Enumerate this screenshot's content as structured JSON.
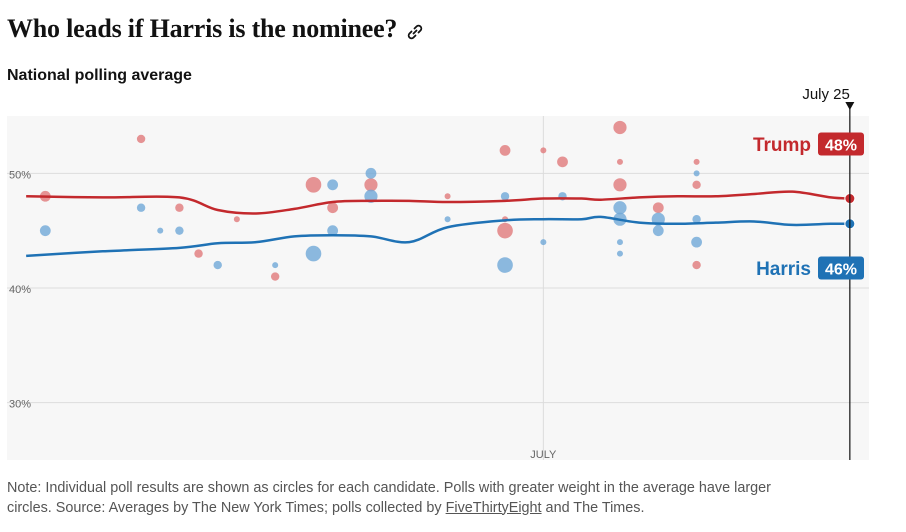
{
  "title": "Who leads if Harris is the nominee?",
  "link_icon": "link-icon",
  "subtitle": "National polling average",
  "note": {
    "text_before": "Note: Individual poll results are shown as circles for each candidate. Polls with greater weight in the average have larger circles. Source: Averages by The New York Times; polls collected by ",
    "link_text": "FiveThirtyEight",
    "text_after": " and The Times."
  },
  "colors": {
    "trump": "#c3292d",
    "harris": "#1f72b5",
    "trump_dot": "#e0797b",
    "harris_dot": "#6fa8d7",
    "overlap_dot": "#4e5b7e",
    "plot_bg": "#f7f7f7",
    "grid": "#dcdcdc"
  },
  "chart_data": {
    "type": "line",
    "title": "National polling average",
    "xlabel": "",
    "ylabel": "",
    "x_range": [
      -28,
      17
    ],
    "ylim": [
      25,
      55
    ],
    "x_ticks": [
      {
        "x": 0,
        "label": "JULY"
      }
    ],
    "y_ticks": [
      {
        "y": 30,
        "label": "30%"
      },
      {
        "y": 40,
        "label": "40%"
      },
      {
        "y": 50,
        "label": "50%"
      }
    ],
    "marker": {
      "x": 16,
      "label": "July 25"
    },
    "series": [
      {
        "name": "Trump",
        "key": "trump",
        "end_label": "48%",
        "x": [
          -27,
          -23,
          -19,
          -17,
          -15,
          -13,
          -11,
          -9,
          -7,
          -5,
          -2,
          0,
          2,
          3,
          5,
          7,
          9,
          11,
          13,
          15,
          16
        ],
        "values": [
          48,
          47.9,
          47.9,
          46.8,
          46.5,
          46.9,
          47.5,
          47.6,
          47.6,
          47.5,
          47.6,
          47.8,
          47.8,
          47.7,
          47.9,
          48.0,
          48.0,
          48.2,
          48.4,
          47.9,
          47.8
        ],
        "polls": [
          {
            "x": -26,
            "y": 48,
            "w": 2
          },
          {
            "x": -21,
            "y": 53,
            "w": 1.5
          },
          {
            "x": -19,
            "y": 47,
            "w": 1.5
          },
          {
            "x": -18,
            "y": 43,
            "w": 1.5
          },
          {
            "x": -16,
            "y": 46,
            "w": 1
          },
          {
            "x": -14,
            "y": 41,
            "w": 1.5
          },
          {
            "x": -12,
            "y": 49,
            "w": 3
          },
          {
            "x": -11,
            "y": 47,
            "w": 2
          },
          {
            "x": -9,
            "y": 49,
            "w": 2.5
          },
          {
            "x": -5,
            "y": 48,
            "w": 1
          },
          {
            "x": -2,
            "y": 52,
            "w": 2
          },
          {
            "x": -2,
            "y": 46,
            "w": 1
          },
          {
            "x": -2,
            "y": 45,
            "w": 3
          },
          {
            "x": 0,
            "y": 52,
            "w": 1
          },
          {
            "x": 1,
            "y": 51,
            "w": 2
          },
          {
            "x": 4,
            "y": 54,
            "w": 2.5
          },
          {
            "x": 4,
            "y": 51,
            "w": 1
          },
          {
            "x": 4,
            "y": 49,
            "w": 2.5
          },
          {
            "x": 6,
            "y": 47,
            "w": 2
          },
          {
            "x": 8,
            "y": 51,
            "w": 1
          },
          {
            "x": 8,
            "y": 49,
            "w": 1.5
          },
          {
            "x": 8,
            "y": 42,
            "w": 1.5
          }
        ]
      },
      {
        "name": "Harris",
        "key": "harris",
        "end_label": "46%",
        "x": [
          -27,
          -23,
          -19,
          -17,
          -15,
          -13,
          -11,
          -9,
          -7,
          -5,
          -2,
          0,
          2,
          3,
          5,
          7,
          9,
          11,
          13,
          15,
          16
        ],
        "values": [
          42.8,
          43.2,
          43.5,
          43.9,
          44.0,
          44.5,
          44.6,
          44.5,
          44.0,
          45.3,
          45.9,
          46.0,
          46.0,
          46.2,
          45.7,
          45.6,
          45.7,
          45.8,
          45.5,
          45.6,
          45.6
        ],
        "polls": [
          {
            "x": -26,
            "y": 45,
            "w": 2
          },
          {
            "x": -21,
            "y": 47,
            "w": 1.5
          },
          {
            "x": -20,
            "y": 45,
            "w": 1
          },
          {
            "x": -19,
            "y": 45,
            "w": 1.5
          },
          {
            "x": -17,
            "y": 42,
            "w": 1.5
          },
          {
            "x": -14,
            "y": 42,
            "w": 1
          },
          {
            "x": -12,
            "y": 43,
            "w": 3
          },
          {
            "x": -11,
            "y": 49,
            "w": 2
          },
          {
            "x": -11,
            "y": 45,
            "w": 2
          },
          {
            "x": -9,
            "y": 50,
            "w": 2
          },
          {
            "x": -9,
            "y": 48,
            "w": 2.5
          },
          {
            "x": -5,
            "y": 46,
            "w": 1
          },
          {
            "x": -2,
            "y": 48,
            "w": 1.5
          },
          {
            "x": -2,
            "y": 42,
            "w": 3
          },
          {
            "x": 0,
            "y": 44,
            "w": 1
          },
          {
            "x": 1,
            "y": 48,
            "w": 1.5
          },
          {
            "x": 4,
            "y": 47,
            "w": 2.5
          },
          {
            "x": 4,
            "y": 46,
            "w": 2.5
          },
          {
            "x": 4,
            "y": 44,
            "w": 1
          },
          {
            "x": 4,
            "y": 43,
            "w": 1
          },
          {
            "x": 6,
            "y": 46,
            "w": 2.5
          },
          {
            "x": 6,
            "y": 45,
            "w": 2
          },
          {
            "x": 8,
            "y": 50,
            "w": 1
          },
          {
            "x": 8,
            "y": 46,
            "w": 1.5
          },
          {
            "x": 8,
            "y": 44,
            "w": 2
          }
        ]
      }
    ]
  }
}
